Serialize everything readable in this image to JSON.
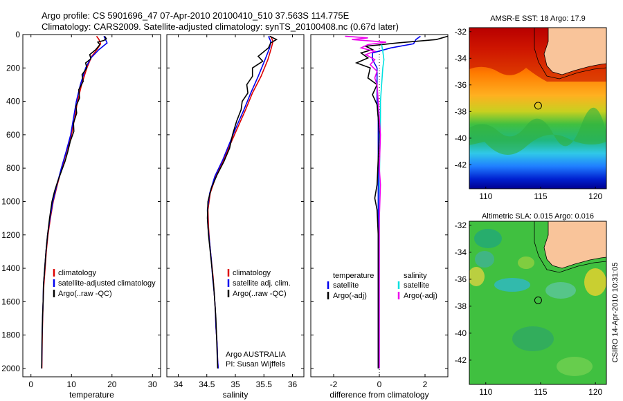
{
  "header": {
    "line1": "Argo profile: CS 5901696_47 07-Apr-2010 20100410_510 37.563S 114.775E",
    "line2": "Climatology: CARS2009. Satellite-adjusted climatology: synTS_20100408.nc (0.67d later)"
  },
  "side_stamp": "CSIRO 14-Apr-2010 10:31:05",
  "institution": {
    "line1": "Argo AUSTRALIA",
    "line2": "PI: Susan Wijffels"
  },
  "chart_data": [
    {
      "type": "line",
      "name": "temperature",
      "xlabel": "temperature",
      "xlim": [
        -2,
        32
      ],
      "ylim": [
        2050,
        0
      ],
      "xticks": [
        0,
        10,
        20,
        30
      ],
      "yticks": [
        0,
        200,
        400,
        600,
        800,
        1000,
        1200,
        1400,
        1600,
        1800,
        2000
      ],
      "legend": [
        "climatology",
        "satellite-adjusted climatology",
        "Argo(..raw -QC)"
      ],
      "series": [
        {
          "name": "climatology",
          "color": "#dd0000",
          "points": [
            [
              16.2,
              10
            ],
            [
              16.8,
              30
            ],
            [
              17.2,
              55
            ],
            [
              16.3,
              90
            ],
            [
              15,
              130
            ],
            [
              13.8,
              200
            ],
            [
              12.5,
              300
            ],
            [
              11.5,
              400
            ],
            [
              10.8,
              500
            ],
            [
              10,
              600
            ],
            [
              8.8,
              700
            ],
            [
              7.6,
              800
            ],
            [
              6.5,
              900
            ],
            [
              5.5,
              1000
            ],
            [
              4.8,
              1100
            ],
            [
              4.2,
              1200
            ],
            [
              3.8,
              1300
            ],
            [
              3.5,
              1400
            ],
            [
              3.2,
              1500
            ],
            [
              3,
              1600
            ],
            [
              2.9,
              1700
            ],
            [
              2.8,
              1800
            ],
            [
              2.75,
              1900
            ],
            [
              2.7,
              2000
            ]
          ]
        },
        {
          "name": "satellite-adjusted climatology",
          "color": "#0000ee",
          "points": [
            [
              18,
              10
            ],
            [
              18.4,
              30
            ],
            [
              18.8,
              50
            ],
            [
              16.8,
              90
            ],
            [
              14.8,
              140
            ],
            [
              13.5,
              200
            ],
            [
              12.2,
              300
            ],
            [
              11.2,
              400
            ],
            [
              10.5,
              500
            ],
            [
              9.8,
              600
            ],
            [
              8.7,
              700
            ],
            [
              7.5,
              800
            ],
            [
              6.4,
              900
            ],
            [
              5.4,
              1000
            ],
            [
              4.7,
              1100
            ],
            [
              4.1,
              1200
            ],
            [
              3.7,
              1300
            ],
            [
              3.4,
              1400
            ],
            [
              3.1,
              1500
            ],
            [
              3,
              1600
            ],
            [
              2.85,
              1700
            ],
            [
              2.75,
              1800
            ],
            [
              2.7,
              1900
            ],
            [
              2.65,
              2000
            ]
          ]
        },
        {
          "name": "Argo(..raw -QC)",
          "color": "#000000",
          "points": [
            [
              18.2,
              10
            ],
            [
              18.6,
              25
            ],
            [
              18,
              35
            ],
            [
              16.5,
              45
            ],
            [
              17,
              60
            ],
            [
              16,
              90
            ],
            [
              14.5,
              120
            ],
            [
              14.8,
              145
            ],
            [
              13.5,
              170
            ],
            [
              13.8,
              200
            ],
            [
              12.6,
              240
            ],
            [
              12.9,
              280
            ],
            [
              11.8,
              330
            ],
            [
              12,
              380
            ],
            [
              11.1,
              430
            ],
            [
              11.3,
              470
            ],
            [
              10.5,
              530
            ],
            [
              10.6,
              580
            ],
            [
              9.7,
              640
            ],
            [
              9.1,
              700
            ],
            [
              8.4,
              760
            ],
            [
              7.5,
              820
            ],
            [
              6.6,
              880
            ],
            [
              5.8,
              940
            ],
            [
              5.2,
              1000
            ],
            [
              4.6,
              1100
            ],
            [
              4.1,
              1200
            ],
            [
              3.7,
              1300
            ],
            [
              3.4,
              1400
            ],
            [
              3.1,
              1500
            ],
            [
              3,
              1600
            ],
            [
              2.85,
              1700
            ],
            [
              2.75,
              1800
            ],
            [
              2.7,
              1900
            ],
            [
              2.65,
              2000
            ]
          ]
        }
      ]
    },
    {
      "type": "line",
      "name": "salinity",
      "xlabel": "salinity",
      "xlim": [
        33.8,
        36.2
      ],
      "ylim": [
        2050,
        0
      ],
      "xticks": [
        34,
        34.5,
        35,
        35.5,
        36
      ],
      "yticks": [
        0,
        200,
        400,
        600,
        800,
        1000,
        1200,
        1400,
        1600,
        1800,
        2000
      ],
      "legend": [
        "climatology",
        "satellite adj. clim.",
        "Argo(..raw -QC)"
      ],
      "series": [
        {
          "name": "climatology",
          "color": "#dd0000",
          "points": [
            [
              35.62,
              10
            ],
            [
              35.66,
              40
            ],
            [
              35.63,
              80
            ],
            [
              35.57,
              150
            ],
            [
              35.45,
              250
            ],
            [
              35.3,
              350
            ],
            [
              35.18,
              450
            ],
            [
              35.05,
              550
            ],
            [
              34.92,
              650
            ],
            [
              34.8,
              750
            ],
            [
              34.66,
              850
            ],
            [
              34.56,
              950
            ],
            [
              34.52,
              1050
            ],
            [
              34.53,
              1150
            ],
            [
              34.55,
              1250
            ],
            [
              34.58,
              1350
            ],
            [
              34.61,
              1450
            ],
            [
              34.63,
              1550
            ],
            [
              34.65,
              1650
            ],
            [
              34.66,
              1750
            ],
            [
              34.68,
              1850
            ],
            [
              34.69,
              1950
            ],
            [
              34.7,
              2000
            ]
          ]
        },
        {
          "name": "satellite adj. clim.",
          "color": "#0000ee",
          "points": [
            [
              35.58,
              10
            ],
            [
              35.62,
              40
            ],
            [
              35.6,
              80
            ],
            [
              35.52,
              150
            ],
            [
              35.4,
              250
            ],
            [
              35.27,
              350
            ],
            [
              35.15,
              450
            ],
            [
              35.02,
              550
            ],
            [
              34.9,
              650
            ],
            [
              34.78,
              750
            ],
            [
              34.64,
              850
            ],
            [
              34.55,
              950
            ],
            [
              34.51,
              1050
            ],
            [
              34.52,
              1150
            ],
            [
              34.55,
              1250
            ],
            [
              34.58,
              1350
            ],
            [
              34.6,
              1450
            ],
            [
              34.63,
              1550
            ],
            [
              34.65,
              1650
            ],
            [
              34.66,
              1750
            ],
            [
              34.68,
              1850
            ],
            [
              34.69,
              1950
            ],
            [
              34.7,
              2000
            ]
          ]
        },
        {
          "name": "Argo(..raw -QC)",
          "color": "#000000",
          "points": [
            [
              35.6,
              10
            ],
            [
              35.72,
              30
            ],
            [
              35.62,
              50
            ],
            [
              35.58,
              80
            ],
            [
              35.4,
              130
            ],
            [
              35.48,
              160
            ],
            [
              35.3,
              200
            ],
            [
              35.3,
              250
            ],
            [
              35.2,
              300
            ],
            [
              35.22,
              350
            ],
            [
              35.12,
              400
            ],
            [
              35.1,
              450
            ],
            [
              35.02,
              520
            ],
            [
              34.95,
              600
            ],
            [
              34.9,
              680
            ],
            [
              34.8,
              760
            ],
            [
              34.68,
              840
            ],
            [
              34.58,
              920
            ],
            [
              34.52,
              1000
            ],
            [
              34.51,
              1100
            ],
            [
              34.53,
              1200
            ],
            [
              34.56,
              1300
            ],
            [
              34.59,
              1400
            ],
            [
              34.62,
              1500
            ],
            [
              34.64,
              1600
            ],
            [
              34.66,
              1700
            ],
            [
              34.67,
              1800
            ],
            [
              34.68,
              1900
            ],
            [
              34.69,
              2000
            ]
          ]
        }
      ]
    },
    {
      "type": "line",
      "name": "difference",
      "xlabel": "difference from climatology",
      "xlim": [
        -3,
        3
      ],
      "ylim": [
        2050,
        0
      ],
      "xticks": [
        -2,
        0,
        2
      ],
      "yticks": [
        0,
        200,
        400,
        600,
        800,
        1000,
        1200,
        1400,
        1600,
        1800,
        2000
      ],
      "legend_temperature_header": "temperature",
      "legend_salinity_header": "salinity",
      "legend": [
        "satellite",
        "Argo(-adj)",
        "satellite",
        "Argo(-adj)"
      ],
      "series": [
        {
          "name": "temperature satellite",
          "color": "#0000ee",
          "points": [
            [
              1.8,
              10
            ],
            [
              1.6,
              30
            ],
            [
              1.5,
              55
            ],
            [
              0.5,
              80
            ],
            [
              -0.3,
              110
            ],
            [
              -0.3,
              150
            ],
            [
              -0.1,
              200
            ],
            [
              -0.1,
              300
            ],
            [
              -0.1,
              400
            ],
            [
              -0.05,
              500
            ],
            [
              -0.05,
              700
            ],
            [
              -0.05,
              900
            ],
            [
              -0.05,
              1100
            ],
            [
              -0.05,
              1300
            ],
            [
              -0.05,
              1500
            ],
            [
              -0.05,
              1700
            ],
            [
              -0.05,
              1900
            ],
            [
              -0.05,
              2000
            ]
          ]
        },
        {
          "name": "temperature Argo(-adj)",
          "color": "#000000",
          "points": [
            [
              3,
              10
            ],
            [
              2.5,
              30
            ],
            [
              0.8,
              50
            ],
            [
              -0.6,
              70
            ],
            [
              -0.3,
              90
            ],
            [
              -0.8,
              110
            ],
            [
              -0.5,
              140
            ],
            [
              -1,
              170
            ],
            [
              -0.4,
              200
            ],
            [
              -0.5,
              260
            ],
            [
              -0.1,
              300
            ],
            [
              -0.3,
              360
            ],
            [
              -0.1,
              420
            ],
            [
              -0.05,
              500
            ],
            [
              0,
              600
            ],
            [
              -0.1,
              900
            ],
            [
              -0.2,
              980
            ],
            [
              -0.1,
              1050
            ],
            [
              -0.05,
              1200
            ],
            [
              -0.05,
              1500
            ],
            [
              -0.05,
              1800
            ],
            [
              -0.05,
              2000
            ]
          ]
        },
        {
          "name": "salinity satellite",
          "color": "#00e0e0",
          "points": [
            [
              0.1,
              60
            ],
            [
              0.15,
              100
            ],
            [
              0.2,
              150
            ],
            [
              0.15,
              200
            ],
            [
              0.1,
              300
            ],
            [
              0.05,
              400
            ],
            [
              0.05,
              500
            ],
            [
              0.02,
              700
            ],
            [
              0,
              900
            ],
            [
              0,
              1200
            ],
            [
              0,
              1500
            ],
            [
              0,
              1800
            ],
            [
              0,
              2000
            ]
          ]
        },
        {
          "name": "salinity Argo(-adj)",
          "color": "#ee00ee",
          "points": [
            [
              -1.5,
              10
            ],
            [
              -0.5,
              20
            ],
            [
              -1.2,
              30
            ],
            [
              0.3,
              45
            ],
            [
              -0.5,
              60
            ],
            [
              -0.8,
              80
            ],
            [
              -0.2,
              100
            ],
            [
              -0.6,
              120
            ],
            [
              -0.2,
              150
            ],
            [
              -0.4,
              180
            ],
            [
              -0.1,
              220
            ],
            [
              -0.2,
              260
            ],
            [
              -0.1,
              300
            ],
            [
              -0.05,
              400
            ],
            [
              0,
              500
            ],
            [
              0.05,
              600
            ],
            [
              0,
              800
            ],
            [
              0.05,
              900
            ],
            [
              0,
              1100
            ],
            [
              0,
              1400
            ],
            [
              0,
              1700
            ],
            [
              0,
              2000
            ]
          ]
        }
      ]
    },
    {
      "type": "heatmap",
      "name": "sst-map",
      "title": "AMSR-E SST: 18 Argo: 17.9",
      "xlim": [
        108.5,
        121
      ],
      "ylim": [
        -43.8,
        -31.7
      ],
      "xticks": [
        110,
        115,
        120
      ],
      "yticks": [
        -32,
        -34,
        -36,
        -38,
        -40,
        -42
      ],
      "marker": [
        114.775,
        -37.563
      ]
    },
    {
      "type": "heatmap",
      "name": "sla-map",
      "title": "Altimetric SLA: 0.015 Argo: 0.016",
      "xlim": [
        108.5,
        121
      ],
      "ylim": [
        -43.8,
        -31.7
      ],
      "xticks": [
        110,
        115,
        120
      ],
      "yticks": [
        -32,
        -34,
        -36,
        -38,
        -40,
        -42
      ],
      "marker": [
        114.775,
        -37.563
      ]
    }
  ]
}
